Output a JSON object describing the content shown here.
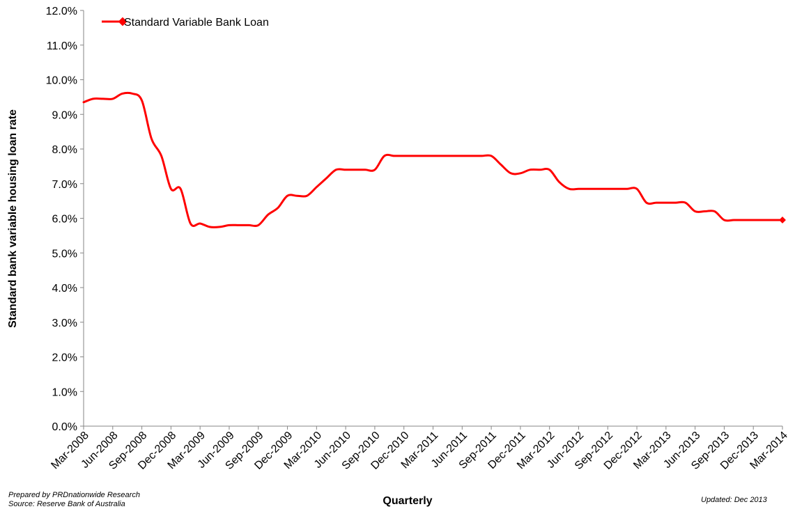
{
  "chart_data": {
    "type": "line",
    "title": "",
    "xlabel": "Quarterly",
    "ylabel": "Standard bank variable housing loan rate",
    "ylim": [
      0,
      12
    ],
    "yticks": [
      "0.0%",
      "1.0%",
      "2.0%",
      "3.0%",
      "4.0%",
      "5.0%",
      "6.0%",
      "7.0%",
      "8.0%",
      "9.0%",
      "10.0%",
      "11.0%",
      "12.0%"
    ],
    "categories": [
      "Mar-2008",
      "Jun-2008",
      "Sep-2008",
      "Dec-2008",
      "Mar-2009",
      "Jun-2009",
      "Sep-2009",
      "Dec-2009",
      "Mar-2010",
      "Jun-2010",
      "Sep-2010",
      "Dec-2010",
      "Mar-2011",
      "Jun-2011",
      "Sep-2011",
      "Dec-2011",
      "Mar-2012",
      "Jun-2012",
      "Sep-2012",
      "Dec-2012",
      "Mar-2013",
      "Jun-2013",
      "Sep-2013",
      "Dec-2013",
      "Mar-2014"
    ],
    "legend": "top-left",
    "series": [
      {
        "name": "Standard Variable Bank Loan",
        "color": "#ff0000",
        "x": [
          0,
          0.33,
          0.67,
          1.0,
          1.33,
          1.67,
          2.0,
          2.33,
          2.67,
          3.0,
          3.33,
          3.67,
          4.0,
          4.33,
          4.67,
          5.0,
          5.33,
          5.67,
          6.0,
          6.33,
          6.67,
          7.0,
          7.33,
          7.67,
          8.0,
          8.33,
          8.67,
          9.0,
          9.33,
          9.67,
          10.0,
          10.33,
          10.67,
          11.0,
          11.33,
          11.67,
          12.0,
          12.33,
          12.67,
          13.0,
          13.33,
          13.67,
          14.0,
          14.33,
          14.67,
          15.0,
          15.33,
          15.67,
          16.0,
          16.33,
          16.67,
          17.0,
          17.33,
          17.67,
          18.0,
          18.33,
          18.67,
          19.0,
          19.33,
          19.67,
          20.0,
          20.33,
          20.67,
          21.0,
          21.33,
          21.67,
          22.0,
          22.33,
          22.67,
          23.0,
          23.33,
          23.67,
          24.0
        ],
        "values": [
          9.35,
          9.45,
          9.45,
          9.45,
          9.6,
          9.6,
          9.4,
          8.3,
          7.8,
          6.85,
          6.85,
          5.85,
          5.85,
          5.75,
          5.75,
          5.8,
          5.8,
          5.8,
          5.8,
          6.1,
          6.3,
          6.65,
          6.65,
          6.65,
          6.9,
          7.15,
          7.4,
          7.4,
          7.4,
          7.4,
          7.4,
          7.8,
          7.8,
          7.8,
          7.8,
          7.8,
          7.8,
          7.8,
          7.8,
          7.8,
          7.8,
          7.8,
          7.8,
          7.55,
          7.3,
          7.3,
          7.4,
          7.4,
          7.4,
          7.05,
          6.85,
          6.85,
          6.85,
          6.85,
          6.85,
          6.85,
          6.85,
          6.85,
          6.45,
          6.45,
          6.45,
          6.45,
          6.45,
          6.2,
          6.2,
          6.2,
          5.95,
          5.95,
          5.95,
          5.95,
          5.95,
          5.95,
          5.95
        ]
      }
    ]
  },
  "notes": {
    "prepared": "Prepared by PRDnationwide Research",
    "source": "Source:  Reserve Bank of Australia",
    "updated": "Updated: Dec 2013"
  }
}
